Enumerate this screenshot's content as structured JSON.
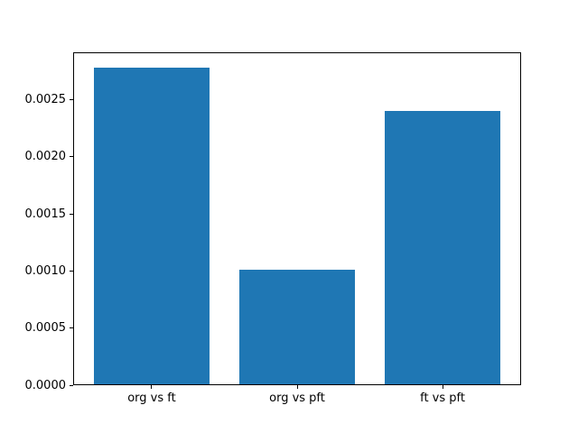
{
  "window": {
    "background": "#ffffff"
  },
  "chart_data": {
    "type": "bar",
    "title": "",
    "xlabel": "",
    "ylabel": "",
    "categories": [
      "org vs ft",
      "org vs pft",
      "ft vs pft"
    ],
    "values": [
      0.00278,
      0.00101,
      0.0024
    ],
    "ylim": [
      0,
      0.002915
    ],
    "xlim": [
      -0.54,
      2.54
    ],
    "bar_width": 0.8,
    "yticks": [
      {
        "value": 0.0,
        "label": "0.0000"
      },
      {
        "value": 0.0005,
        "label": "0.0005"
      },
      {
        "value": 0.001,
        "label": "0.0010"
      },
      {
        "value": 0.0015,
        "label": "0.0015"
      },
      {
        "value": 0.002,
        "label": "0.0020"
      },
      {
        "value": 0.0025,
        "label": "0.0025"
      }
    ],
    "bar_color": "#1f77b4",
    "axis_color": "#000000",
    "plot_background": "#ffffff",
    "grid": false,
    "legend_position": "none"
  }
}
